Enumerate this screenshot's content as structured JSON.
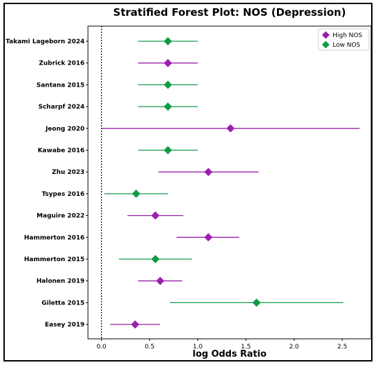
{
  "chart_data": {
    "type": "scatter",
    "title": "Stratified Forest Plot: NOS (Depression)",
    "xlabel": "log Odds Ratio",
    "ylabel": "",
    "xlim": [
      -0.14,
      2.8
    ],
    "xticks": [
      0.0,
      0.5,
      1.0,
      1.5,
      2.0,
      2.5
    ],
    "xtick_labels": [
      "0.0",
      "0.5",
      "1.0",
      "1.5",
      "2.0",
      "2.5"
    ],
    "reference_line": 0.0,
    "legend_position": "top-right",
    "colors": {
      "High NOS": "#9b1fac",
      "Low NOS": "#0e9c44"
    },
    "legend": [
      {
        "label": "High NOS",
        "color": "#9b1fac"
      },
      {
        "label": "Low NOS",
        "color": "#0e9c44"
      }
    ],
    "studies": [
      {
        "label": "Takami Lageborn 2024",
        "group": "Low NOS",
        "estimate": 0.69,
        "ci_low": 0.38,
        "ci_high": 1.0
      },
      {
        "label": "Zubrick 2016",
        "group": "High NOS",
        "estimate": 0.69,
        "ci_low": 0.38,
        "ci_high": 1.0
      },
      {
        "label": "Santana 2015",
        "group": "Low NOS",
        "estimate": 0.69,
        "ci_low": 0.38,
        "ci_high": 1.0
      },
      {
        "label": "Scharpf 2024",
        "group": "Low NOS",
        "estimate": 0.69,
        "ci_low": 0.38,
        "ci_high": 1.0
      },
      {
        "label": "Jeong 2020",
        "group": "High NOS",
        "estimate": 1.34,
        "ci_low": 0.0,
        "ci_high": 2.68
      },
      {
        "label": "Kawabe 2016",
        "group": "Low NOS",
        "estimate": 0.69,
        "ci_low": 0.38,
        "ci_high": 1.0
      },
      {
        "label": "Zhu 2023",
        "group": "High NOS",
        "estimate": 1.11,
        "ci_low": 0.59,
        "ci_high": 1.63
      },
      {
        "label": "Tsypes 2016",
        "group": "Low NOS",
        "estimate": 0.36,
        "ci_low": 0.03,
        "ci_high": 0.69
      },
      {
        "label": "Maguire 2022",
        "group": "High NOS",
        "estimate": 0.56,
        "ci_low": 0.27,
        "ci_high": 0.85
      },
      {
        "label": "Hammerton 2016",
        "group": "High NOS",
        "estimate": 1.11,
        "ci_low": 0.78,
        "ci_high": 1.43
      },
      {
        "label": "Hammerton 2015",
        "group": "Low NOS",
        "estimate": 0.56,
        "ci_low": 0.18,
        "ci_high": 0.94
      },
      {
        "label": "Halonen 2019",
        "group": "High NOS",
        "estimate": 0.61,
        "ci_low": 0.38,
        "ci_high": 0.84
      },
      {
        "label": "Giletta 2015",
        "group": "Low NOS",
        "estimate": 1.61,
        "ci_low": 0.71,
        "ci_high": 2.51
      },
      {
        "label": "Easey 2019",
        "group": "High NOS",
        "estimate": 0.35,
        "ci_low": 0.09,
        "ci_high": 0.61
      }
    ]
  }
}
